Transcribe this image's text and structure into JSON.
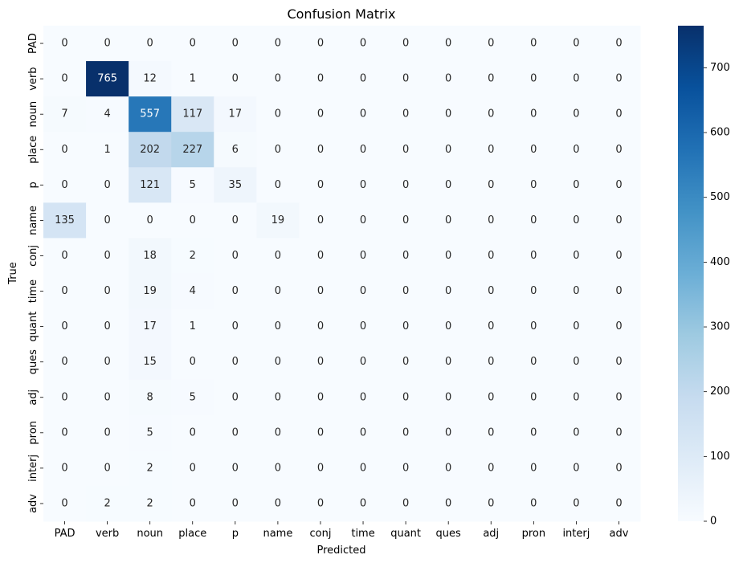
{
  "chart_data": {
    "type": "heatmap",
    "title": "Confusion Matrix",
    "xlabel": "Predicted",
    "ylabel": "True",
    "x_categories": [
      "PAD",
      "verb",
      "noun",
      "place",
      "p",
      "name",
      "conj",
      "time",
      "quant",
      "ques",
      "adj",
      "pron",
      "interj",
      "adv"
    ],
    "y_categories": [
      "PAD",
      "verb",
      "noun",
      "place",
      "p",
      "name",
      "conj",
      "time",
      "quant",
      "ques",
      "adj",
      "pron",
      "interj",
      "adv"
    ],
    "values": [
      [
        0,
        0,
        0,
        0,
        0,
        0,
        0,
        0,
        0,
        0,
        0,
        0,
        0,
        0
      ],
      [
        0,
        765,
        12,
        1,
        0,
        0,
        0,
        0,
        0,
        0,
        0,
        0,
        0,
        0
      ],
      [
        7,
        4,
        557,
        117,
        17,
        0,
        0,
        0,
        0,
        0,
        0,
        0,
        0,
        0
      ],
      [
        0,
        1,
        202,
        227,
        6,
        0,
        0,
        0,
        0,
        0,
        0,
        0,
        0,
        0
      ],
      [
        0,
        0,
        121,
        5,
        35,
        0,
        0,
        0,
        0,
        0,
        0,
        0,
        0,
        0
      ],
      [
        135,
        0,
        0,
        0,
        0,
        19,
        0,
        0,
        0,
        0,
        0,
        0,
        0,
        0
      ],
      [
        0,
        0,
        18,
        2,
        0,
        0,
        0,
        0,
        0,
        0,
        0,
        0,
        0,
        0
      ],
      [
        0,
        0,
        19,
        4,
        0,
        0,
        0,
        0,
        0,
        0,
        0,
        0,
        0,
        0
      ],
      [
        0,
        0,
        17,
        1,
        0,
        0,
        0,
        0,
        0,
        0,
        0,
        0,
        0,
        0
      ],
      [
        0,
        0,
        15,
        0,
        0,
        0,
        0,
        0,
        0,
        0,
        0,
        0,
        0,
        0
      ],
      [
        0,
        0,
        8,
        5,
        0,
        0,
        0,
        0,
        0,
        0,
        0,
        0,
        0,
        0
      ],
      [
        0,
        0,
        5,
        0,
        0,
        0,
        0,
        0,
        0,
        0,
        0,
        0,
        0,
        0
      ],
      [
        0,
        0,
        2,
        0,
        0,
        0,
        0,
        0,
        0,
        0,
        0,
        0,
        0,
        0
      ],
      [
        0,
        2,
        2,
        0,
        0,
        0,
        0,
        0,
        0,
        0,
        0,
        0,
        0,
        0
      ]
    ],
    "colormap": "Blues",
    "vmin": 0,
    "vmax": 765,
    "colorbar_ticks": [
      0,
      100,
      200,
      300,
      400,
      500,
      600,
      700
    ]
  }
}
